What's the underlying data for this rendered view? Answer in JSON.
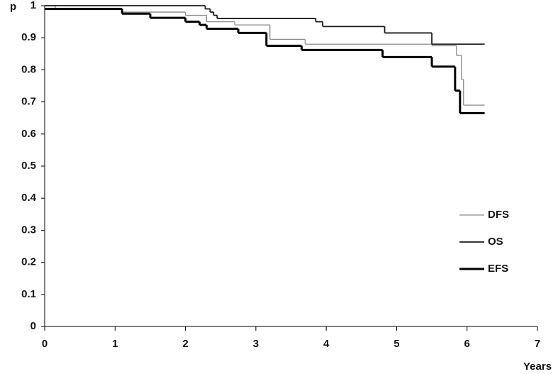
{
  "chart_data": {
    "type": "line",
    "drawstyle": "steps-post",
    "ylabel": "p",
    "xlabel": "Years",
    "xlim": [
      0,
      7
    ],
    "xticks": [
      0,
      1,
      2,
      3,
      4,
      5,
      6,
      7
    ],
    "ylim": [
      0,
      1
    ],
    "yticks": [
      0,
      0.1,
      0.2,
      0.3,
      0.4,
      0.5,
      0.6,
      0.7,
      0.8,
      0.9,
      1
    ],
    "grid": false,
    "legend": "right",
    "series": [
      {
        "name": "DFS",
        "color": "#8a8a8a",
        "linewidth": 1.3,
        "x": [
          0,
          0.15,
          1.1,
          2.0,
          2.3,
          2.7,
          3.2,
          3.7,
          5.5,
          5.85,
          5.92,
          5.95,
          6.25
        ],
        "values": [
          1,
          0.99,
          0.98,
          0.97,
          0.95,
          0.94,
          0.895,
          0.88,
          0.875,
          0.845,
          0.77,
          0.69,
          0.69
        ]
      },
      {
        "name": "OS",
        "color": "#1a1a1a",
        "linewidth": 1.8,
        "x": [
          0,
          2.28,
          2.35,
          2.4,
          2.45,
          3.85,
          3.95,
          4.83,
          5.5,
          6.25
        ],
        "values": [
          1,
          0.99,
          0.98,
          0.97,
          0.96,
          0.95,
          0.935,
          0.915,
          0.88,
          0.88
        ]
      },
      {
        "name": "EFS",
        "color": "#000000",
        "linewidth": 3,
        "x": [
          0,
          1.1,
          1.5,
          2.0,
          2.2,
          2.3,
          2.75,
          3.15,
          3.65,
          4.8,
          5.5,
          5.83,
          5.9,
          6.25
        ],
        "values": [
          0.99,
          0.975,
          0.962,
          0.95,
          0.94,
          0.928,
          0.915,
          0.875,
          0.862,
          0.84,
          0.81,
          0.735,
          0.665,
          0.665
        ]
      }
    ]
  }
}
